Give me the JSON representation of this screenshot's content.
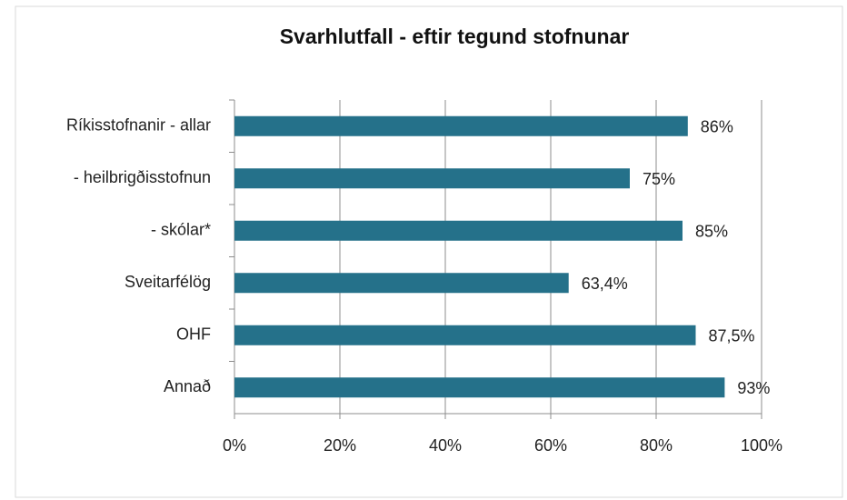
{
  "chart_data": {
    "type": "barh",
    "title": "Svarhlutfall - eftir tegund stofnunar",
    "categories": [
      "Ríkisstofnanir - allar",
      "- heilbrigðisstofnun",
      "- skólar*",
      "Sveitarfélög",
      "OHF",
      "Annað"
    ],
    "values": [
      86,
      75,
      85,
      63.4,
      87.5,
      93
    ],
    "value_labels": [
      "86%",
      "75%",
      "85%",
      "63,4%",
      "87,5%",
      "93%"
    ],
    "color": "#25718a",
    "xlim": [
      0,
      100
    ],
    "xticks": [
      {
        "value": 0,
        "label": "0%"
      },
      {
        "value": 20,
        "label": "20%"
      },
      {
        "value": 40,
        "label": "40%"
      },
      {
        "value": 60,
        "label": "60%"
      },
      {
        "value": 80,
        "label": "80%"
      },
      {
        "value": 100,
        "label": "100%"
      }
    ],
    "grid": true
  }
}
